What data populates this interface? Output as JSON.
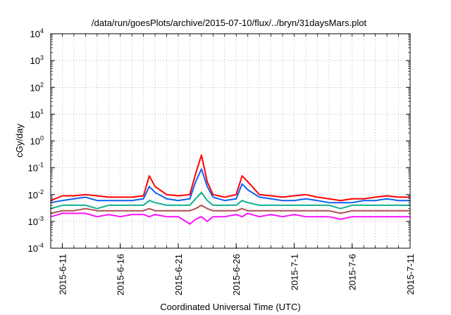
{
  "chart_data": {
    "type": "line",
    "title": "/data/run/goesPlots/archive/2015-07-10/flux/../bryn/31daysMars.plot",
    "xlabel": "Coordinated Universal Time (UTC)",
    "ylabel": "cGy/day",
    "yscale": "log",
    "ylim": [
      0.0001,
      10000
    ],
    "xlim": [
      "2015-06-10T00:00",
      "2015-07-11T00:00"
    ],
    "grid": true,
    "y_ticks": [
      {
        "value": 0.0001,
        "base": "10",
        "exp": "-4"
      },
      {
        "value": 0.001,
        "base": "10",
        "exp": "-3"
      },
      {
        "value": 0.01,
        "base": "10",
        "exp": "-2"
      },
      {
        "value": 0.1,
        "base": "10",
        "exp": "-1"
      },
      {
        "value": 1,
        "base": "10",
        "exp": "0"
      },
      {
        "value": 10,
        "base": "10",
        "exp": "1"
      },
      {
        "value": 100,
        "base": "10",
        "exp": "2"
      },
      {
        "value": 1000,
        "base": "10",
        "exp": "3"
      },
      {
        "value": 10000,
        "base": "10",
        "exp": "4"
      }
    ],
    "x_ticks": [
      {
        "label": "2015-6-11",
        "date": "2015-06-11"
      },
      {
        "label": "2015-6-16",
        "date": "2015-06-16"
      },
      {
        "label": "2015-6-21",
        "date": "2015-06-21"
      },
      {
        "label": "2015-6-26",
        "date": "2015-06-26"
      },
      {
        "label": "2015-7-1",
        "date": "2015-07-01"
      },
      {
        "label": "2015-7-6",
        "date": "2015-07-06"
      },
      {
        "label": "2015-7-11",
        "date": "2015-07-11"
      }
    ],
    "x": [
      "2015-06-10",
      "2015-06-11",
      "2015-06-12",
      "2015-06-13",
      "2015-06-14",
      "2015-06-15",
      "2015-06-16",
      "2015-06-17",
      "2015-06-18",
      "2015-06-18T12:00",
      "2015-06-19",
      "2015-06-20",
      "2015-06-21",
      "2015-06-22",
      "2015-06-22T12:00",
      "2015-06-23",
      "2015-06-23T12:00",
      "2015-06-24",
      "2015-06-25",
      "2015-06-26",
      "2015-06-26T12:00",
      "2015-06-27",
      "2015-06-28",
      "2015-06-29",
      "2015-06-30",
      "2015-07-01",
      "2015-07-02",
      "2015-07-03",
      "2015-07-04",
      "2015-07-05",
      "2015-07-06",
      "2015-07-07",
      "2015-07-08",
      "2015-07-09",
      "2015-07-10",
      "2015-07-11"
    ],
    "series": [
      {
        "color": "#ff0000",
        "values": [
          0.006,
          0.009,
          0.009,
          0.01,
          0.009,
          0.008,
          0.008,
          0.008,
          0.009,
          0.05,
          0.02,
          0.01,
          0.009,
          0.01,
          0.06,
          0.3,
          0.03,
          0.01,
          0.008,
          0.01,
          0.05,
          0.03,
          0.01,
          0.009,
          0.008,
          0.009,
          0.01,
          0.008,
          0.007,
          0.006,
          0.007,
          0.007,
          0.008,
          0.009,
          0.008,
          0.008
        ]
      },
      {
        "color": "#1060f0",
        "values": [
          0.005,
          0.006,
          0.007,
          0.008,
          0.006,
          0.006,
          0.006,
          0.006,
          0.007,
          0.02,
          0.012,
          0.007,
          0.006,
          0.007,
          0.03,
          0.09,
          0.02,
          0.008,
          0.006,
          0.007,
          0.025,
          0.015,
          0.008,
          0.007,
          0.006,
          0.006,
          0.007,
          0.006,
          0.005,
          0.005,
          0.005,
          0.006,
          0.006,
          0.007,
          0.006,
          0.006
        ]
      },
      {
        "color": "#10b090",
        "values": [
          0.003,
          0.004,
          0.004,
          0.004,
          0.003,
          0.004,
          0.004,
          0.004,
          0.004,
          0.006,
          0.005,
          0.004,
          0.004,
          0.004,
          0.007,
          0.012,
          0.006,
          0.004,
          0.004,
          0.004,
          0.006,
          0.005,
          0.004,
          0.004,
          0.004,
          0.004,
          0.004,
          0.004,
          0.004,
          0.003,
          0.004,
          0.004,
          0.004,
          0.004,
          0.004,
          0.004
        ]
      },
      {
        "color": "#b05050",
        "values": [
          0.002,
          0.0025,
          0.0025,
          0.003,
          0.0025,
          0.0025,
          0.0025,
          0.0025,
          0.0025,
          0.003,
          0.0025,
          0.0025,
          0.0025,
          0.0025,
          0.003,
          0.004,
          0.003,
          0.0025,
          0.0025,
          0.0025,
          0.003,
          0.0025,
          0.0025,
          0.0025,
          0.0025,
          0.0025,
          0.0025,
          0.0025,
          0.0025,
          0.002,
          0.0025,
          0.0025,
          0.0025,
          0.0025,
          0.0025,
          0.0025
        ]
      },
      {
        "color": "#ff10ff",
        "values": [
          0.0015,
          0.002,
          0.002,
          0.002,
          0.0015,
          0.0018,
          0.0015,
          0.0018,
          0.0018,
          0.0015,
          0.0018,
          0.0015,
          0.0015,
          0.0008,
          0.0012,
          0.0015,
          0.001,
          0.0015,
          0.0015,
          0.0018,
          0.0015,
          0.002,
          0.0015,
          0.0018,
          0.0015,
          0.0018,
          0.0015,
          0.0015,
          0.0015,
          0.0012,
          0.0015,
          0.0015,
          0.0015,
          0.0015,
          0.0015,
          0.0015
        ]
      }
    ]
  }
}
